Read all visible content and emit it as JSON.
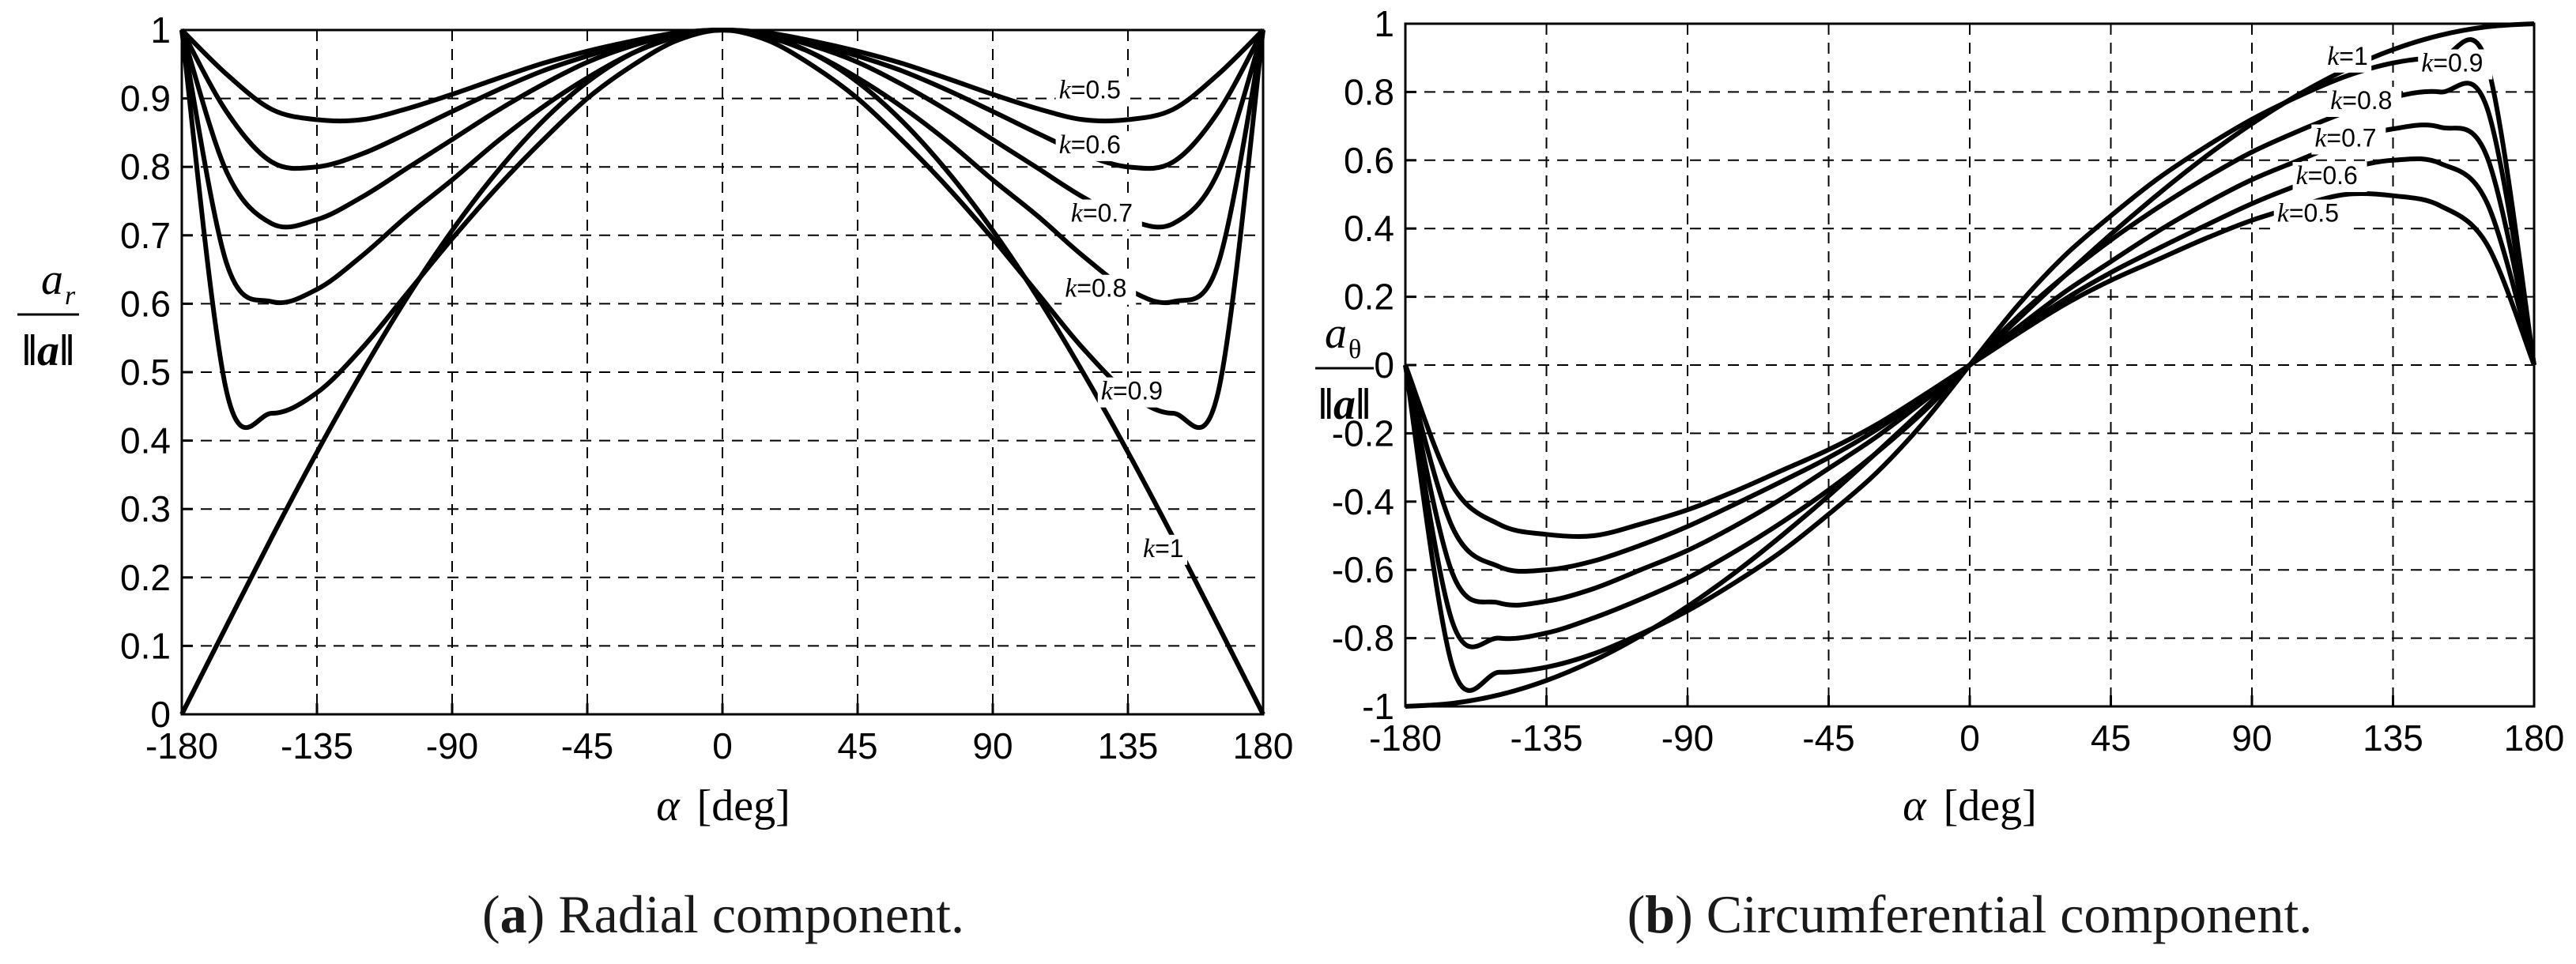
{
  "chart_data": [
    {
      "type": "line",
      "id": "radial",
      "caption_letter": "a",
      "caption_text": ") Radial component.",
      "xlabel_symbol": "α",
      "xlabel_unit": "[deg]",
      "ylabel_numerator": "a",
      "ylabel_sub": "r",
      "ylabel_denominator": "‖a‖",
      "xlim": [
        -180,
        180
      ],
      "ylim": [
        0,
        1
      ],
      "xticks": [
        -180,
        -135,
        -90,
        -45,
        0,
        45,
        90,
        135,
        180
      ],
      "xtick_labels": [
        "-180",
        "-135",
        "-90",
        "-45",
        "0",
        "45",
        "90",
        "135",
        "180"
      ],
      "yticks": [
        0,
        0.1,
        0.2,
        0.3,
        0.4,
        0.5,
        0.6,
        0.7,
        0.8,
        0.9,
        1
      ],
      "ytick_labels": [
        "0",
        "0.1",
        "0.2",
        "0.3",
        "0.4",
        "0.5",
        "0.6",
        "0.7",
        "0.8",
        "0.9",
        "1"
      ],
      "grid": true,
      "x": [
        -180,
        -165,
        -150,
        -135,
        -120,
        -105,
        -90,
        -75,
        -60,
        -45,
        -30,
        -15,
        0,
        15,
        30,
        45,
        60,
        75,
        90,
        105,
        120,
        135,
        150,
        165,
        180
      ],
      "series": [
        {
          "name": "k=0.5",
          "label_k": "k",
          "label_val": "=0.5",
          "label_at": [
            112,
            0.9
          ],
          "values": [
            1,
            0.935,
            0.884,
            0.869,
            0.869,
            0.885,
            0.906,
            0.929,
            0.951,
            0.969,
            0.984,
            0.996,
            1,
            0.996,
            0.984,
            0.969,
            0.951,
            0.929,
            0.906,
            0.885,
            0.869,
            0.869,
            0.884,
            0.935,
            1
          ]
        },
        {
          "name": "k=0.6",
          "label_k": "k",
          "label_val": "=0.6",
          "label_at": [
            112,
            0.82
          ],
          "values": [
            1,
            0.88,
            0.807,
            0.8,
            0.819,
            0.849,
            0.881,
            0.912,
            0.94,
            0.962,
            0.981,
            0.995,
            1,
            0.995,
            0.981,
            0.962,
            0.94,
            0.912,
            0.881,
            0.849,
            0.819,
            0.8,
            0.807,
            0.88,
            1
          ]
        },
        {
          "name": "k=0.7",
          "label_k": "k",
          "label_val": "=0.7",
          "label_at": [
            116,
            0.72
          ],
          "values": [
            1,
            0.792,
            0.717,
            0.723,
            0.756,
            0.798,
            0.84,
            0.882,
            0.92,
            0.953,
            0.977,
            0.994,
            1,
            0.994,
            0.977,
            0.953,
            0.92,
            0.882,
            0.84,
            0.798,
            0.756,
            0.723,
            0.717,
            0.792,
            1
          ]
        },
        {
          "name": "k=0.8",
          "label_k": "k",
          "label_val": "=0.8",
          "label_at": [
            114,
            0.61
          ],
          "values": [
            1,
            0.658,
            0.603,
            0.621,
            0.67,
            0.728,
            0.781,
            0.837,
            0.887,
            0.93,
            0.966,
            0.99,
            1,
            0.99,
            0.966,
            0.93,
            0.887,
            0.837,
            0.781,
            0.728,
            0.67,
            0.621,
            0.603,
            0.658,
            1
          ]
        },
        {
          "name": "k=0.9",
          "label_k": "k",
          "label_val": "=0.9",
          "label_at": [
            126,
            0.46
          ],
          "values": [
            1,
            0.47,
            0.44,
            0.47,
            0.535,
            0.615,
            0.695,
            0.77,
            0.838,
            0.9,
            0.948,
            0.985,
            1,
            0.985,
            0.948,
            0.9,
            0.838,
            0.77,
            0.695,
            0.615,
            0.535,
            0.47,
            0.44,
            0.47,
            1
          ]
        },
        {
          "name": "k=1",
          "label_k": "k",
          "label_val": "=1",
          "label_at": [
            140,
            0.23
          ],
          "values": [
            0,
            0.13,
            0.259,
            0.383,
            0.5,
            0.609,
            0.707,
            0.793,
            0.866,
            0.924,
            0.966,
            0.991,
            1,
            0.991,
            0.966,
            0.924,
            0.866,
            0.793,
            0.707,
            0.609,
            0.5,
            0.383,
            0.259,
            0.13,
            0
          ]
        }
      ]
    },
    {
      "type": "line",
      "id": "circumferential",
      "caption_letter": "b",
      "caption_text": ") Circumferential component.",
      "xlabel_symbol": "α",
      "xlabel_unit": "[deg]",
      "ylabel_numerator": "a",
      "ylabel_sub": "θ",
      "ylabel_denominator": "‖a‖",
      "xlim": [
        -180,
        180
      ],
      "ylim": [
        -1,
        1
      ],
      "xticks": [
        -180,
        -135,
        -90,
        -45,
        0,
        45,
        90,
        135,
        180
      ],
      "xtick_labels": [
        "-180",
        "-135",
        "-90",
        "-45",
        "0",
        "45",
        "90",
        "135",
        "180"
      ],
      "yticks": [
        -1,
        -0.8,
        -0.6,
        -0.4,
        -0.2,
        0,
        0.2,
        0.4,
        0.6,
        0.8,
        1
      ],
      "ytick_labels": [
        "-1",
        "-0.8",
        "-0.6",
        "-0.4",
        "-0.2",
        "0",
        "0.2",
        "0.4",
        "0.6",
        "0.8",
        "1"
      ],
      "grid": true,
      "x": [
        -180,
        -165,
        -150,
        -135,
        -120,
        -105,
        -90,
        -75,
        -60,
        -45,
        -30,
        -15,
        0,
        15,
        30,
        45,
        60,
        75,
        90,
        105,
        120,
        135,
        150,
        165,
        180
      ],
      "series": [
        {
          "name": "k=0.5",
          "label_k": "k",
          "label_val": "=0.5",
          "label_at": [
            98,
            0.42
          ],
          "values": [
            0,
            -0.353,
            -0.467,
            -0.496,
            -0.5,
            -0.466,
            -0.424,
            -0.37,
            -0.309,
            -0.248,
            -0.176,
            -0.09,
            0,
            0.09,
            0.176,
            0.248,
            0.309,
            0.37,
            0.424,
            0.466,
            0.5,
            0.496,
            0.467,
            0.353,
            0
          ]
        },
        {
          "name": "k=0.6",
          "label_k": "k",
          "label_val": "=0.6",
          "label_at": [
            104,
            0.53
          ],
          "values": [
            0,
            -0.475,
            -0.591,
            -0.6,
            -0.574,
            -0.528,
            -0.473,
            -0.408,
            -0.341,
            -0.271,
            -0.191,
            -0.098,
            0,
            0.098,
            0.191,
            0.271,
            0.341,
            0.408,
            0.473,
            0.528,
            0.574,
            0.6,
            0.591,
            0.475,
            0
          ]
        },
        {
          "name": "k=0.7",
          "label_k": "k",
          "label_val": "=0.7",
          "label_at": [
            110,
            0.64
          ],
          "values": [
            0,
            -0.61,
            -0.697,
            -0.692,
            -0.655,
            -0.6,
            -0.543,
            -0.472,
            -0.392,
            -0.303,
            -0.212,
            -0.108,
            0,
            0.108,
            0.212,
            0.303,
            0.392,
            0.472,
            0.543,
            0.6,
            0.655,
            0.692,
            0.697,
            0.61,
            0
          ]
        },
        {
          "name": "k=0.8",
          "label_k": "k",
          "label_val": "=0.8",
          "label_at": [
            115,
            0.75
          ],
          "values": [
            0,
            -0.753,
            -0.8,
            -0.785,
            -0.741,
            -0.686,
            -0.624,
            -0.547,
            -0.461,
            -0.366,
            -0.259,
            -0.139,
            0,
            0.139,
            0.259,
            0.366,
            0.461,
            0.547,
            0.624,
            0.686,
            0.741,
            0.785,
            0.8,
            0.753,
            0
          ]
        },
        {
          "name": "k=0.9",
          "label_k": "k",
          "label_val": "=0.9",
          "label_at": [
            144,
            0.86
          ],
          "values": [
            0,
            -0.882,
            -0.9,
            -0.885,
            -0.846,
            -0.788,
            -0.72,
            -0.638,
            -0.546,
            -0.437,
            -0.318,
            -0.171,
            0,
            0.171,
            0.318,
            0.437,
            0.546,
            0.638,
            0.72,
            0.788,
            0.846,
            0.885,
            0.9,
            0.882,
            0
          ]
        },
        {
          "name": "k=1",
          "label_k": "k",
          "label_val": "=1",
          "label_at": [
            114,
            0.88
          ],
          "values": [
            -1,
            -0.991,
            -0.966,
            -0.924,
            -0.866,
            -0.793,
            -0.707,
            -0.609,
            -0.5,
            -0.383,
            -0.259,
            -0.131,
            0,
            0.131,
            0.259,
            0.383,
            0.5,
            0.609,
            0.707,
            0.793,
            0.866,
            0.924,
            0.966,
            0.991,
            1
          ]
        }
      ]
    }
  ]
}
